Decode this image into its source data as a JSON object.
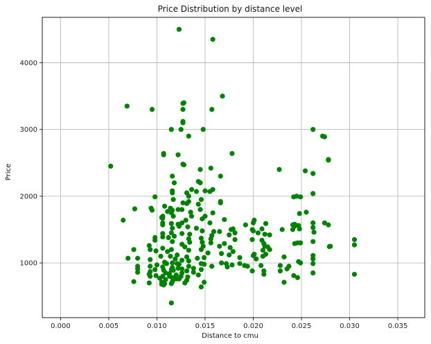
{
  "chart_data": {
    "type": "scatter",
    "title": "Price Distribution by distance level",
    "xlabel": "Distance to cmu",
    "ylabel": "Price",
    "xlim": [
      -0.0019,
      0.0378
    ],
    "ylim": [
      180,
      4680
    ],
    "xticks": [
      0.0,
      0.005,
      0.01,
      0.015,
      0.02,
      0.025,
      0.03,
      0.035
    ],
    "xtick_labels": [
      "0.000",
      "0.005",
      "0.010",
      "0.015",
      "0.020",
      "0.025",
      "0.030",
      "0.035"
    ],
    "yticks": [
      1000,
      2000,
      3000,
      4000
    ],
    "ytick_labels": [
      "1000",
      "2000",
      "3000",
      "4000"
    ],
    "grid": true,
    "marker_color": "#008000",
    "series": [
      {
        "points": [
          [
            0.0123,
            4500
          ],
          [
            0.0158,
            4350
          ],
          [
            0.0168,
            3500
          ],
          [
            0.0069,
            3350
          ],
          [
            0.0095,
            3300
          ],
          [
            0.0128,
            3400
          ],
          [
            0.0127,
            3390
          ],
          [
            0.0127,
            3300
          ],
          [
            0.0157,
            3300
          ],
          [
            0.0127,
            3120
          ],
          [
            0.0127,
            3100
          ],
          [
            0.0115,
            3000
          ],
          [
            0.0125,
            3000
          ],
          [
            0.0148,
            3000
          ],
          [
            0.0262,
            3000
          ],
          [
            0.0272,
            2900
          ],
          [
            0.0133,
            2900
          ],
          [
            0.0274,
            2890
          ],
          [
            0.0178,
            2640
          ],
          [
            0.0107,
            2640
          ],
          [
            0.0107,
            2620
          ],
          [
            0.0122,
            2620
          ],
          [
            0.0278,
            2550
          ],
          [
            0.0278,
            2540
          ],
          [
            0.0127,
            2480
          ],
          [
            0.0128,
            2470
          ],
          [
            0.0052,
            2450
          ],
          [
            0.0156,
            2420
          ],
          [
            0.0145,
            2400
          ],
          [
            0.0227,
            2400
          ],
          [
            0.0254,
            2380
          ],
          [
            0.0262,
            2340
          ],
          [
            0.0166,
            2300
          ],
          [
            0.0116,
            2300
          ],
          [
            0.0143,
            2220
          ],
          [
            0.0145,
            2200
          ],
          [
            0.0118,
            2200
          ],
          [
            0.0136,
            2100
          ],
          [
            0.0158,
            2100
          ],
          [
            0.015,
            2080
          ],
          [
            0.0155,
            2070
          ],
          [
            0.0141,
            2070
          ],
          [
            0.0116,
            2080
          ],
          [
            0.0116,
            2050
          ],
          [
            0.0131,
            2050
          ],
          [
            0.0262,
            2040
          ],
          [
            0.0133,
            2000
          ],
          [
            0.0098,
            1990
          ],
          [
            0.0245,
            2000
          ],
          [
            0.0242,
            1990
          ],
          [
            0.0249,
            1990
          ],
          [
            0.0117,
            1950
          ],
          [
            0.0146,
            1950
          ],
          [
            0.0133,
            1920
          ],
          [
            0.0166,
            1920
          ],
          [
            0.0166,
            1900
          ],
          [
            0.0127,
            1900
          ],
          [
            0.0131,
            1890
          ],
          [
            0.0108,
            1850
          ],
          [
            0.0143,
            1880
          ],
          [
            0.0114,
            1820
          ],
          [
            0.0077,
            1810
          ],
          [
            0.0094,
            1820
          ],
          [
            0.0145,
            1800
          ],
          [
            0.0122,
            1800
          ],
          [
            0.0126,
            1800
          ],
          [
            0.0116,
            1790
          ],
          [
            0.0095,
            1790
          ],
          [
            0.0111,
            1770
          ],
          [
            0.0135,
            1760
          ],
          [
            0.0255,
            1760
          ],
          [
            0.0158,
            1750
          ],
          [
            0.0115,
            1750
          ],
          [
            0.0248,
            1740
          ],
          [
            0.0106,
            1700
          ],
          [
            0.0117,
            1700
          ],
          [
            0.0136,
            1700
          ],
          [
            0.015,
            1700
          ],
          [
            0.0105,
            1680
          ],
          [
            0.0106,
            1670
          ],
          [
            0.0147,
            1660
          ],
          [
            0.017,
            1650
          ],
          [
            0.0201,
            1640
          ],
          [
            0.0065,
            1640
          ],
          [
            0.013,
            1640
          ],
          [
            0.02,
            1600
          ],
          [
            0.0262,
            1600
          ],
          [
            0.0106,
            1600
          ],
          [
            0.0155,
            1600
          ],
          [
            0.0126,
            1600
          ],
          [
            0.0115,
            1590
          ],
          [
            0.0122,
            1580
          ],
          [
            0.0106,
            1570
          ],
          [
            0.0243,
            1580
          ],
          [
            0.0247,
            1560
          ],
          [
            0.0274,
            1600
          ],
          [
            0.0278,
            1570
          ],
          [
            0.0213,
            1590
          ],
          [
            0.0241,
            1570
          ],
          [
            0.0192,
            1570
          ],
          [
            0.0243,
            1550
          ],
          [
            0.0123,
            1550
          ],
          [
            0.0116,
            1520
          ],
          [
            0.0141,
            1520
          ],
          [
            0.0132,
            1540
          ],
          [
            0.0177,
            1500
          ],
          [
            0.0179,
            1510
          ],
          [
            0.0199,
            1500
          ],
          [
            0.0209,
            1510
          ],
          [
            0.0248,
            1510
          ],
          [
            0.023,
            1500
          ],
          [
            0.0241,
            1500
          ],
          [
            0.0262,
            1530
          ],
          [
            0.02,
            1480
          ],
          [
            0.0147,
            1480
          ],
          [
            0.0159,
            1470
          ],
          [
            0.0165,
            1470
          ],
          [
            0.0263,
            1460
          ],
          [
            0.0181,
            1450
          ],
          [
            0.0205,
            1450
          ],
          [
            0.0115,
            1450
          ],
          [
            0.0126,
            1440
          ],
          [
            0.0106,
            1440
          ],
          [
            0.0134,
            1430
          ],
          [
            0.0175,
            1420
          ],
          [
            0.0212,
            1430
          ],
          [
            0.0217,
            1420
          ],
          [
            0.0157,
            1410
          ],
          [
            0.0118,
            1400
          ],
          [
            0.0106,
            1390
          ],
          [
            0.0112,
            1380
          ],
          [
            0.0098,
            1380
          ],
          [
            0.0146,
            1370
          ],
          [
            0.0133,
            1360
          ],
          [
            0.0156,
            1360
          ],
          [
            0.0181,
            1350
          ],
          [
            0.0199,
            1350
          ],
          [
            0.0209,
            1340
          ],
          [
            0.0098,
            1340
          ],
          [
            0.0305,
            1350
          ],
          [
            0.0262,
            1320
          ],
          [
            0.0116,
            1320
          ],
          [
            0.0134,
            1310
          ],
          [
            0.0147,
            1310
          ],
          [
            0.0156,
            1300
          ],
          [
            0.0246,
            1300
          ],
          [
            0.0249,
            1300
          ],
          [
            0.0243,
            1290
          ],
          [
            0.017,
            1290
          ],
          [
            0.0211,
            1290
          ],
          [
            0.0126,
            1280
          ],
          [
            0.0092,
            1260
          ],
          [
            0.0305,
            1270
          ],
          [
            0.028,
            1250
          ],
          [
            0.0279,
            1245
          ],
          [
            0.0148,
            1250
          ],
          [
            0.0165,
            1250
          ],
          [
            0.0212,
            1250
          ],
          [
            0.0215,
            1240
          ],
          [
            0.0129,
            1240
          ],
          [
            0.0176,
            1230
          ],
          [
            0.0106,
            1220
          ],
          [
            0.0076,
            1200
          ],
          [
            0.0093,
            1200
          ],
          [
            0.0115,
            1200
          ],
          [
            0.0133,
            1190
          ],
          [
            0.0146,
            1200
          ],
          [
            0.0217,
            1200
          ],
          [
            0.021,
            1190
          ],
          [
            0.0099,
            1180
          ],
          [
            0.0111,
            1170
          ],
          [
            0.0179,
            1170
          ],
          [
            0.0153,
            1150
          ],
          [
            0.0167,
            1140
          ],
          [
            0.0201,
            1130
          ],
          [
            0.0213,
            1130
          ],
          [
            0.0121,
            1120
          ],
          [
            0.0175,
            1120
          ],
          [
            0.02,
            1110
          ],
          [
            0.0262,
            1110
          ],
          [
            0.021,
            1100
          ],
          [
            0.0104,
            1100
          ],
          [
            0.0114,
            1100
          ],
          [
            0.0232,
            1090
          ],
          [
            0.0131,
            1090
          ],
          [
            0.0186,
            1080
          ],
          [
            0.0149,
            1080
          ],
          [
            0.007,
            1070
          ],
          [
            0.008,
            1070
          ],
          [
            0.0142,
            1070
          ],
          [
            0.0203,
            1060
          ],
          [
            0.0262,
            1060
          ],
          [
            0.0119,
            1060
          ],
          [
            0.0093,
            1050
          ],
          [
            0.0126,
            1040
          ],
          [
            0.0133,
            1030
          ],
          [
            0.0247,
            1020
          ],
          [
            0.0108,
            1010
          ],
          [
            0.0167,
            1000
          ],
          [
            0.0116,
            1000
          ],
          [
            0.0121,
            990
          ],
          [
            0.0146,
            990
          ],
          [
            0.0172,
            990
          ],
          [
            0.0186,
            990
          ],
          [
            0.0262,
            990
          ],
          [
            0.0249,
            1000
          ],
          [
            0.011,
            990
          ],
          [
            0.0123,
            980
          ],
          [
            0.0149,
            980
          ],
          [
            0.0178,
            970
          ],
          [
            0.01,
            970
          ],
          [
            0.0191,
            960
          ],
          [
            0.0208,
            960
          ],
          [
            0.0228,
            960
          ],
          [
            0.0194,
            950
          ],
          [
            0.0157,
            950
          ],
          [
            0.0237,
            950
          ],
          [
            0.008,
            950
          ],
          [
            0.0093,
            950
          ],
          [
            0.0133,
            950
          ],
          [
            0.0173,
            940
          ],
          [
            0.0106,
            940
          ],
          [
            0.0116,
            930
          ],
          [
            0.0122,
            920
          ],
          [
            0.0138,
            920
          ],
          [
            0.008,
            910
          ],
          [
            0.0126,
            910
          ],
          [
            0.0235,
            910
          ],
          [
            0.0146,
            900
          ],
          [
            0.0115,
            900
          ],
          [
            0.0098,
            900
          ],
          [
            0.0107,
            890
          ],
          [
            0.0117,
            890
          ],
          [
            0.0131,
            880
          ],
          [
            0.0211,
            880
          ],
          [
            0.0199,
            880
          ],
          [
            0.0228,
            880
          ],
          [
            0.0093,
            870
          ],
          [
            0.0138,
            860
          ],
          [
            0.008,
            860
          ],
          [
            0.0262,
            850
          ],
          [
            0.0109,
            850
          ],
          [
            0.0126,
            850
          ],
          [
            0.0113,
            840
          ],
          [
            0.0092,
            830
          ],
          [
            0.0211,
            830
          ],
          [
            0.0305,
            830
          ],
          [
            0.012,
            820
          ],
          [
            0.0143,
            820
          ],
          [
            0.0099,
            810
          ],
          [
            0.0242,
            810
          ],
          [
            0.0106,
            800
          ],
          [
            0.0113,
            800
          ],
          [
            0.0125,
            800
          ],
          [
            0.0093,
            800
          ],
          [
            0.0132,
            790
          ],
          [
            0.0116,
            780
          ],
          [
            0.0246,
            780
          ],
          [
            0.0103,
            770
          ],
          [
            0.012,
            760
          ],
          [
            0.0123,
            760
          ],
          [
            0.0109,
            750
          ],
          [
            0.0131,
            740
          ],
          [
            0.0076,
            720
          ],
          [
            0.0116,
            720
          ],
          [
            0.0149,
            710
          ],
          [
            0.0232,
            710
          ],
          [
            0.0105,
            710
          ],
          [
            0.0092,
            700
          ],
          [
            0.0129,
            700
          ],
          [
            0.0108,
            690
          ],
          [
            0.0115,
            690
          ],
          [
            0.0105,
            680
          ],
          [
            0.0107,
            670
          ],
          [
            0.0146,
            640
          ],
          [
            0.0115,
            400
          ]
        ]
      }
    ]
  }
}
